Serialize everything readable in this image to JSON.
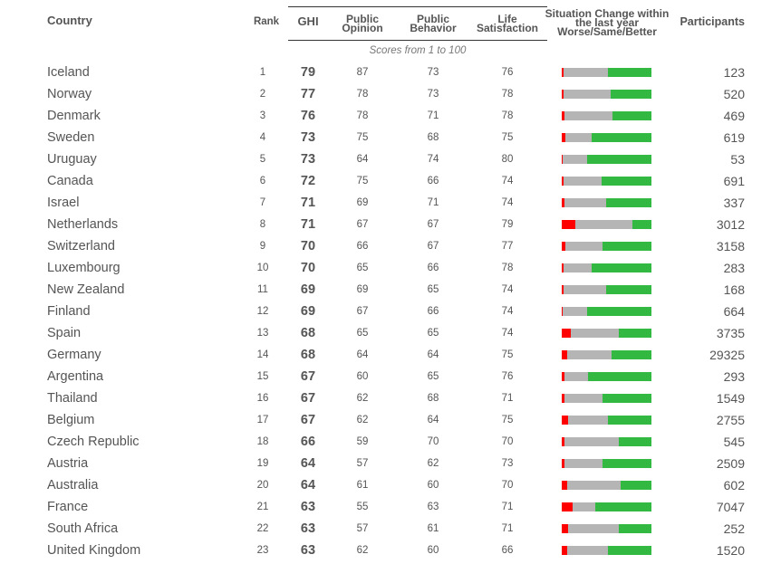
{
  "header": {
    "country": "Country",
    "rank": "Rank",
    "ghi": "GHI",
    "public_opinion": [
      "Public",
      "Opinion"
    ],
    "public_behavior": [
      "Public",
      "Behavior"
    ],
    "life_satisfaction": [
      "Life",
      "Satisfaction"
    ],
    "situation": [
      "Situation Change within",
      "the last year",
      "Worse/Same/Better"
    ],
    "participants": "Participants",
    "note": "Scores from 1 to 100"
  },
  "colors": {
    "worse": "#ff0000",
    "same": "#b5b5b5",
    "better": "#33b841"
  },
  "rows": [
    {
      "country": "Iceland",
      "rank": "1",
      "ghi": "79",
      "po": "87",
      "pb": "73",
      "ls": "76",
      "change": [
        2,
        50,
        48
      ],
      "participants": "123"
    },
    {
      "country": "Norway",
      "rank": "2",
      "ghi": "77",
      "po": "78",
      "pb": "73",
      "ls": "78",
      "change": [
        2,
        53,
        45
      ],
      "participants": "520"
    },
    {
      "country": "Denmark",
      "rank": "3",
      "ghi": "76",
      "po": "78",
      "pb": "71",
      "ls": "78",
      "change": [
        3,
        54,
        43
      ],
      "participants": "469"
    },
    {
      "country": "Sweden",
      "rank": "4",
      "ghi": "73",
      "po": "75",
      "pb": "68",
      "ls": "75",
      "change": [
        4,
        29,
        67
      ],
      "participants": "619"
    },
    {
      "country": "Uruguay",
      "rank": "5",
      "ghi": "73",
      "po": "64",
      "pb": "74",
      "ls": "80",
      "change": [
        1,
        27,
        72
      ],
      "participants": "53"
    },
    {
      "country": "Canada",
      "rank": "6",
      "ghi": "72",
      "po": "75",
      "pb": "66",
      "ls": "74",
      "change": [
        2,
        42,
        56
      ],
      "participants": "691"
    },
    {
      "country": "Israel",
      "rank": "7",
      "ghi": "71",
      "po": "69",
      "pb": "71",
      "ls": "74",
      "change": [
        3,
        47,
        50
      ],
      "participants": "337"
    },
    {
      "country": "Netherlands",
      "rank": "8",
      "ghi": "71",
      "po": "67",
      "pb": "67",
      "ls": "79",
      "change": [
        15,
        64,
        21
      ],
      "participants": "3012"
    },
    {
      "country": "Switzerland",
      "rank": "9",
      "ghi": "70",
      "po": "66",
      "pb": "67",
      "ls": "77",
      "change": [
        4,
        41,
        55
      ],
      "participants": "3158"
    },
    {
      "country": "Luxembourg",
      "rank": "10",
      "ghi": "70",
      "po": "65",
      "pb": "66",
      "ls": "78",
      "change": [
        2,
        31,
        67
      ],
      "participants": "283"
    },
    {
      "country": "New Zealand",
      "rank": "11",
      "ghi": "69",
      "po": "69",
      "pb": "65",
      "ls": "74",
      "change": [
        2,
        48,
        50
      ],
      "participants": "168"
    },
    {
      "country": "Finland",
      "rank": "12",
      "ghi": "69",
      "po": "67",
      "pb": "66",
      "ls": "74",
      "change": [
        1,
        27,
        72
      ],
      "participants": "664"
    },
    {
      "country": "Spain",
      "rank": "13",
      "ghi": "68",
      "po": "65",
      "pb": "65",
      "ls": "74",
      "change": [
        10,
        54,
        36
      ],
      "participants": "3735"
    },
    {
      "country": "Germany",
      "rank": "14",
      "ghi": "68",
      "po": "64",
      "pb": "64",
      "ls": "75",
      "change": [
        6,
        50,
        44
      ],
      "participants": "29325"
    },
    {
      "country": "Argentina",
      "rank": "15",
      "ghi": "67",
      "po": "60",
      "pb": "65",
      "ls": "76",
      "change": [
        3,
        26,
        71
      ],
      "participants": "293"
    },
    {
      "country": "Thailand",
      "rank": "16",
      "ghi": "67",
      "po": "62",
      "pb": "68",
      "ls": "71",
      "change": [
        3,
        42,
        55
      ],
      "participants": "1549"
    },
    {
      "country": "Belgium",
      "rank": "17",
      "ghi": "67",
      "po": "62",
      "pb": "64",
      "ls": "75",
      "change": [
        7,
        45,
        48
      ],
      "participants": "2755"
    },
    {
      "country": "Czech Republic",
      "rank": "18",
      "ghi": "66",
      "po": "59",
      "pb": "70",
      "ls": "70",
      "change": [
        3,
        61,
        36
      ],
      "participants": "545"
    },
    {
      "country": "Austria",
      "rank": "19",
      "ghi": "64",
      "po": "57",
      "pb": "62",
      "ls": "73",
      "change": [
        3,
        42,
        55
      ],
      "participants": "2509"
    },
    {
      "country": "Australia",
      "rank": "20",
      "ghi": "64",
      "po": "61",
      "pb": "60",
      "ls": "70",
      "change": [
        6,
        60,
        34
      ],
      "participants": "602"
    },
    {
      "country": "France",
      "rank": "21",
      "ghi": "63",
      "po": "55",
      "pb": "63",
      "ls": "71",
      "change": [
        12,
        25,
        63
      ],
      "participants": "7047"
    },
    {
      "country": "South Africa",
      "rank": "22",
      "ghi": "63",
      "po": "57",
      "pb": "61",
      "ls": "71",
      "change": [
        7,
        57,
        36
      ],
      "participants": "252"
    },
    {
      "country": "United Kingdom",
      "rank": "23",
      "ghi": "63",
      "po": "62",
      "pb": "60",
      "ls": "66",
      "change": [
        6,
        46,
        48
      ],
      "participants": "1520"
    }
  ]
}
